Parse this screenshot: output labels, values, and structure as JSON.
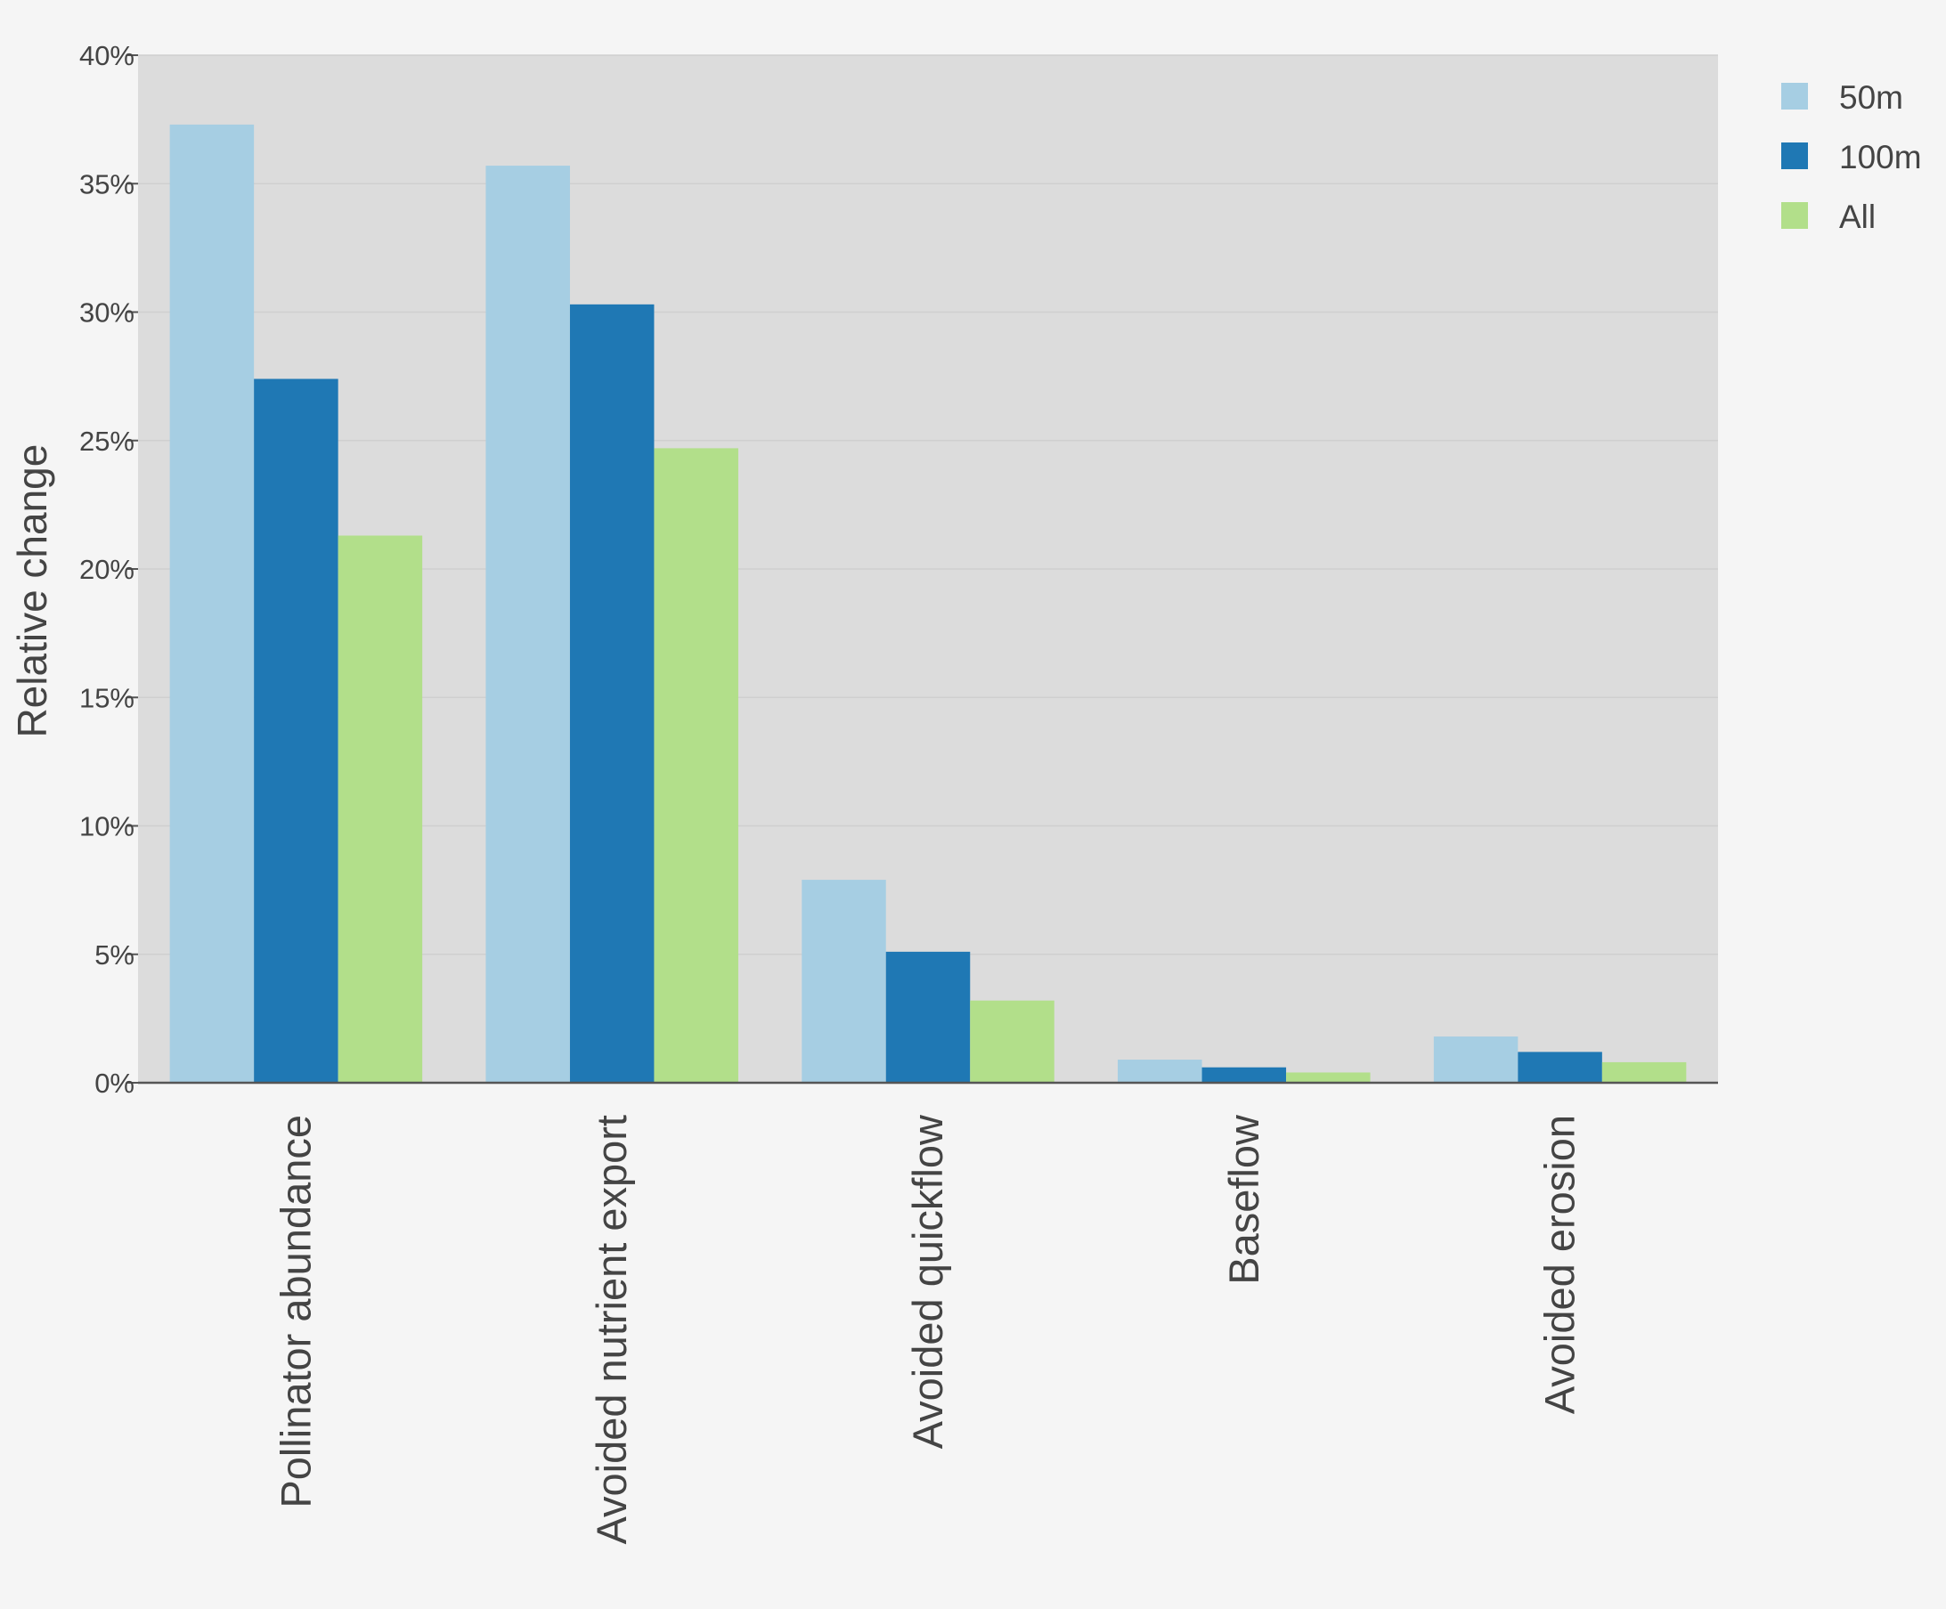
{
  "chart_data": {
    "type": "bar",
    "title": "",
    "xlabel": "",
    "ylabel": "Relative change",
    "ylim": [
      0,
      40
    ],
    "y_ticks": [
      0,
      5,
      10,
      15,
      20,
      25,
      30,
      35,
      40
    ],
    "y_tick_labels": [
      "0%",
      "5%",
      "10%",
      "15%",
      "20%",
      "25%",
      "30%",
      "35%",
      "40%"
    ],
    "grid": true,
    "legend_position": "top-right",
    "categories": [
      "Pollinator abundance",
      "Avoided nutrient export",
      "Avoided quickflow",
      "Baseflow",
      "Avoided erosion"
    ],
    "series": [
      {
        "name": "50m",
        "color": "#a6cee3",
        "values": [
          37.3,
          35.7,
          7.9,
          0.9,
          1.8
        ]
      },
      {
        "name": "100m",
        "color": "#1f78b4",
        "values": [
          27.4,
          30.3,
          5.1,
          0.6,
          1.2
        ]
      },
      {
        "name": "All",
        "color": "#b2df8a",
        "values": [
          21.3,
          24.7,
          3.2,
          0.4,
          0.8
        ]
      }
    ],
    "plot_background": "#dcdcdc",
    "page_background": "#f5f5f5"
  }
}
